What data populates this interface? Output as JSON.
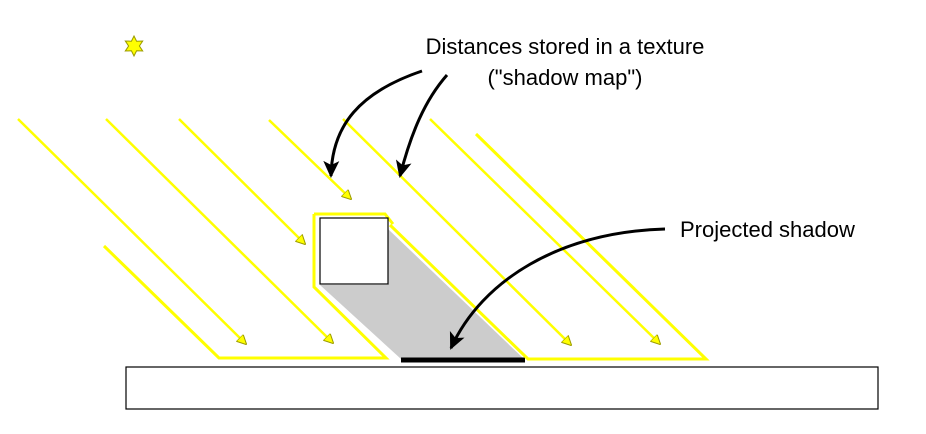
{
  "labels": {
    "texture_line1": "Distances stored in a texture",
    "texture_line2": "(\"shadow map\")",
    "projected_shadow": "Projected shadow"
  },
  "icons": {
    "light_source": "sun-icon"
  },
  "colors": {
    "light": "#ffff00",
    "light_outline": "#999900",
    "shadow_fill": "#cccccc",
    "shadow_strip": "#000000",
    "ground_fill": "#ffffff",
    "outline": "#000000"
  }
}
